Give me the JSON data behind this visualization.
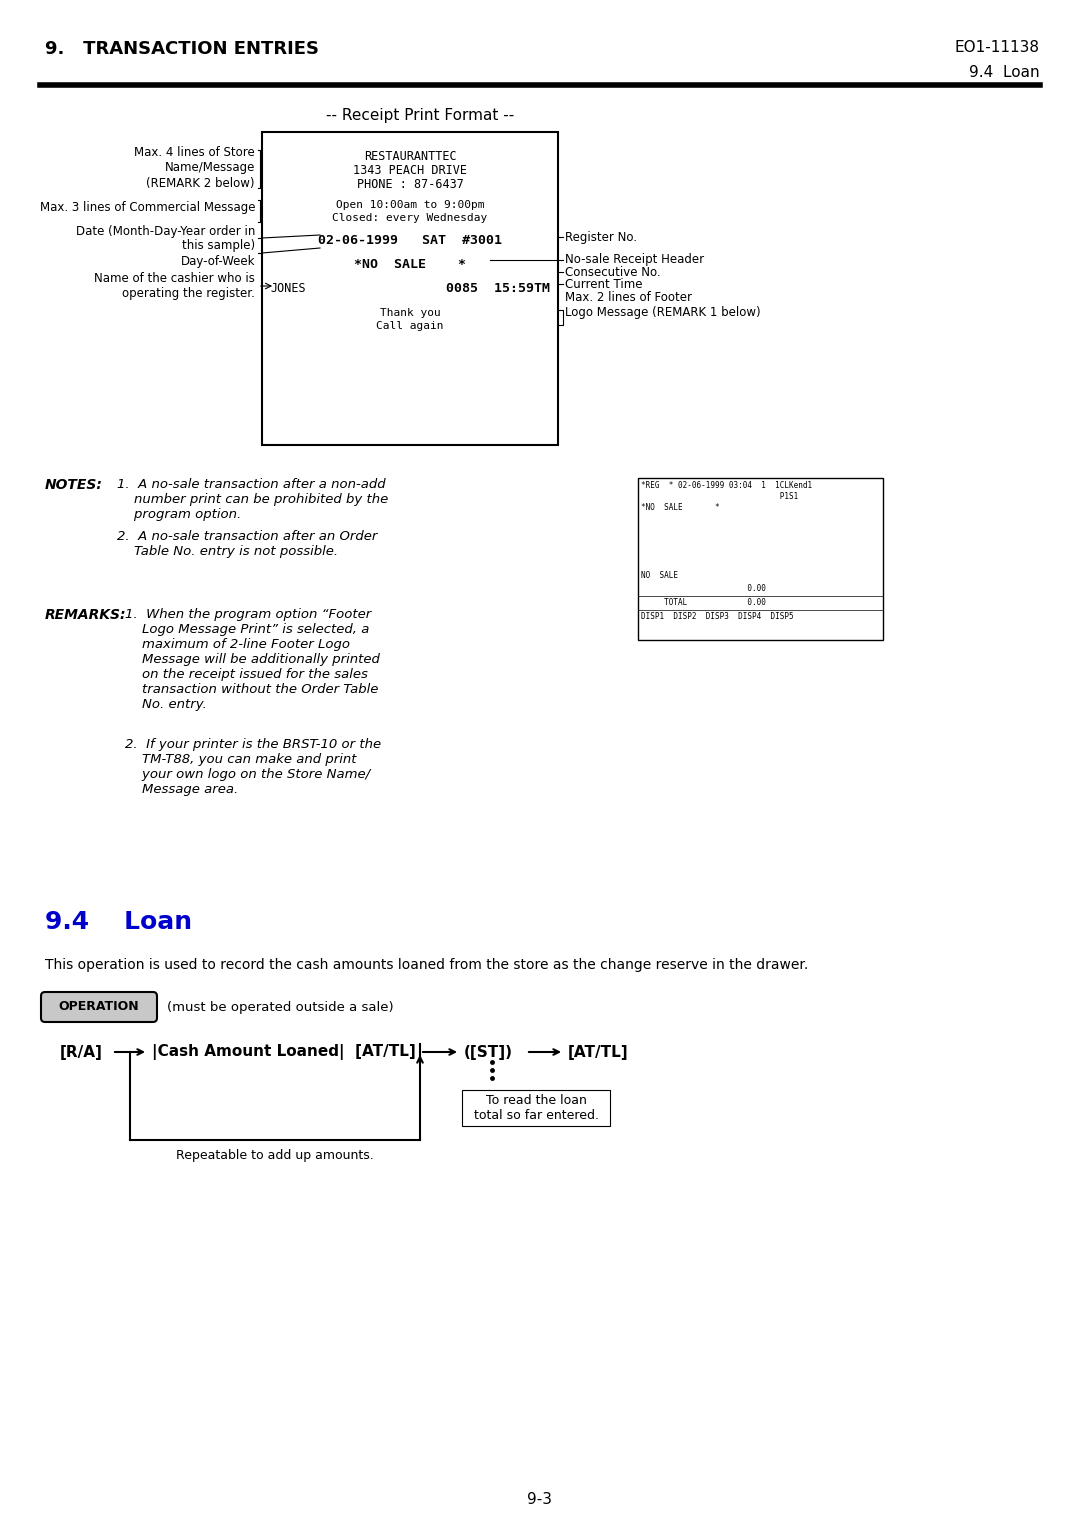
{
  "page_title_left": "9.   TRANSACTION ENTRIES",
  "page_title_right": "EO1-11138",
  "page_subtitle_right": "9.4  Loan",
  "receipt_format_title": "-- Receipt Print Format --",
  "notes_bold": "NOTES:",
  "notes": [
    "1.  A no-sale transaction after a non-add\n    number print can be prohibited by the\n    program option.",
    "2.  A no-sale transaction after an Order\n    Table No. entry is not possible."
  ],
  "remarks_bold": "REMARKS:",
  "remarks": [
    "1.  When the program option “Footer\n    Logo Message Print” is selected, a\n    maximum of 2-line Footer Logo\n    Message will be additionally printed\n    on the receipt issued for the sales\n    transaction without the Order Table\n    No. entry.",
    "2.  If your printer is the BRST-10 or the\n    TM-T88, you can make and print\n    your own logo on the Store Name/\n    Message area."
  ],
  "section_title": "9.4    Loan",
  "section_color": "#0000CC",
  "section_desc": "This operation is used to record the cash amounts loaned from the store as the change reserve in the drawer.",
  "operation_label": "OPERATION",
  "operation_note": "(must be operated outside a sale)",
  "flow_repeat": "Repeatable to add up amounts.",
  "flow_note": "To read the loan\ntotal so far entered.",
  "page_number": "9-3",
  "bg_color": "#ffffff",
  "text_color": "#000000"
}
